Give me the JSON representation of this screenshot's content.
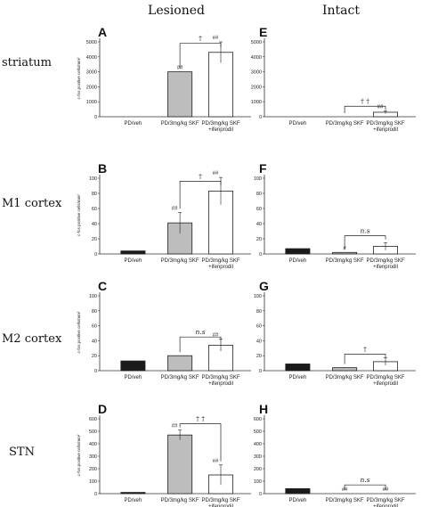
{
  "column_headers": [
    "Lesioned",
    "Intact"
  ],
  "row_headers": [
    "striatum",
    "M1 cortex",
    "M2 cortex",
    "STN"
  ],
  "colors": {
    "veh": "#1a1a1a",
    "skf": "#bdbdbd",
    "ifen": "#ffffff",
    "axis": "#333333"
  },
  "chart_data": [
    {
      "type": "bar",
      "panel": "A",
      "row": 0,
      "col": 0,
      "ylabel": "c-fos positive cells/mm²",
      "ylim": [
        0,
        5000
      ],
      "ticks": [
        0,
        1000,
        2000,
        3000,
        4000,
        5000
      ],
      "categories": [
        "PD/veh",
        "PD/3mg/kg  SKF",
        "PD/3mg/kg  SKF\n+ifenprodil"
      ],
      "values": [
        0,
        3000,
        4300
      ],
      "errors": [
        0,
        0,
        700
      ],
      "bar_labels": [
        "",
        "##",
        "##"
      ],
      "bracket": {
        "text": "†",
        "y": 4900
      }
    },
    {
      "type": "bar",
      "panel": "E",
      "row": 0,
      "col": 1,
      "ylabel": "",
      "ylim": [
        0,
        5000
      ],
      "ticks": [
        0,
        1000,
        2000,
        3000,
        4000,
        5000
      ],
      "categories": [
        "PD/veh",
        "PD/3mg/kg  SKF",
        "PD/3mg/kg  SKF\n+ifenprodil"
      ],
      "values": [
        0,
        0,
        300
      ],
      "errors": [
        0,
        0,
        100
      ],
      "bar_labels": [
        "",
        "",
        "##"
      ],
      "bracket": {
        "text": "† †",
        "y": 700
      }
    },
    {
      "type": "bar",
      "panel": "B",
      "row": 1,
      "col": 0,
      "ylabel": "c-fos positive cells/mm²",
      "ylim": [
        0,
        100
      ],
      "ticks": [
        0,
        20,
        40,
        60,
        80,
        100
      ],
      "categories": [
        "PD/veh",
        "PD/3mg/kg  SKF",
        "PD/3mg/kg  SKF\n+ifenprodil"
      ],
      "values": [
        4,
        41,
        83
      ],
      "errors": [
        0,
        14,
        18
      ],
      "bar_labels": [
        "",
        "##",
        "##"
      ],
      "bracket": {
        "text": "†",
        "y": 96
      }
    },
    {
      "type": "bar",
      "panel": "F",
      "row": 1,
      "col": 1,
      "ylabel": "",
      "ylim": [
        0,
        100
      ],
      "ticks": [
        0,
        20,
        40,
        60,
        80,
        100
      ],
      "categories": [
        "PD/veh",
        "PD/3mg/kg  SKF",
        "PD/3mg/kg  SKF\n+ifenprodil"
      ],
      "values": [
        7,
        2,
        10
      ],
      "errors": [
        0,
        0,
        5
      ],
      "bar_labels": [
        "",
        "#",
        ""
      ],
      "bracket": {
        "text": "n.s",
        "y": 24
      }
    },
    {
      "type": "bar",
      "panel": "C",
      "row": 2,
      "col": 0,
      "ylabel": "c-fos positive cells/mm²",
      "ylim": [
        0,
        100
      ],
      "ticks": [
        0,
        20,
        40,
        60,
        80,
        100
      ],
      "categories": [
        "PD/veh",
        "PD/3mg/kg  SKF",
        "PD/3mg/kg  SKF\n+ifenprodil"
      ],
      "values": [
        13,
        20,
        34
      ],
      "errors": [
        0,
        0,
        8
      ],
      "bar_labels": [
        "",
        "",
        "##"
      ],
      "bracket": {
        "text": "n.s",
        "y": 45
      }
    },
    {
      "type": "bar",
      "panel": "G",
      "row": 2,
      "col": 1,
      "ylabel": "",
      "ylim": [
        0,
        100
      ],
      "ticks": [
        0,
        20,
        40,
        60,
        80,
        100
      ],
      "categories": [
        "PD/veh",
        "PD/3mg/kg  SKF",
        "PD/3mg/kg  SKF\n+ifenprodil"
      ],
      "values": [
        9,
        4,
        12
      ],
      "errors": [
        0,
        0,
        5
      ],
      "bar_labels": [
        "",
        "",
        ""
      ],
      "bracket": {
        "text": "†",
        "y": 22
      }
    },
    {
      "type": "bar",
      "panel": "D",
      "row": 3,
      "col": 0,
      "ylabel": "c-fos positive cells/mm²",
      "ylim": [
        0,
        600
      ],
      "ticks": [
        0,
        100,
        200,
        300,
        400,
        500,
        600
      ],
      "categories": [
        "PD/veh",
        "PD/3mg/kg  SKF",
        "PD/3mg/kg  SKF\n+ifenprodil"
      ],
      "values": [
        10,
        470,
        150
      ],
      "errors": [
        0,
        40,
        80
      ],
      "bar_labels": [
        "",
        "##",
        "##"
      ],
      "bracket": {
        "text": "† †",
        "y": 560
      }
    },
    {
      "type": "bar",
      "panel": "H",
      "row": 3,
      "col": 1,
      "ylabel": "",
      "ylim": [
        0,
        600
      ],
      "ticks": [
        0,
        100,
        200,
        300,
        400,
        500,
        600
      ],
      "categories": [
        "PD/veh",
        "PD/3mg/kg  SKF",
        "PD/3mg/kg  SKF\n+ifenprodil"
      ],
      "values": [
        40,
        0,
        0
      ],
      "errors": [
        0,
        0,
        0
      ],
      "bar_labels": [
        "",
        "##",
        "##"
      ],
      "bracket": {
        "text": "n.s",
        "y": 70
      }
    }
  ]
}
